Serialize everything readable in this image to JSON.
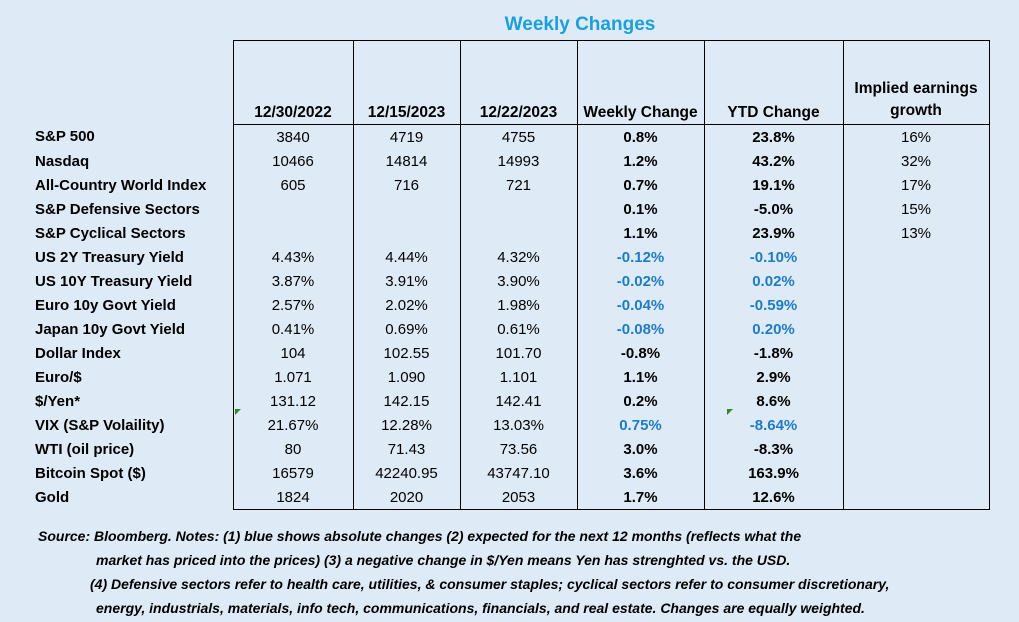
{
  "title": "Weekly Changes",
  "headers": [
    "12/30/2022",
    "12/15/2023",
    "12/22/2023",
    "Weekly Change",
    "YTD Change",
    "Implied earnings growth"
  ],
  "rows": [
    {
      "label": "S&P 500",
      "v1": "3840",
      "v2": "4719",
      "v3": "4755",
      "weekly": "0.8%",
      "ytd": "23.8%",
      "earnings": "16%",
      "blue": false
    },
    {
      "label": "Nasdaq",
      "v1": "10466",
      "v2": "14814",
      "v3": "14993",
      "weekly": "1.2%",
      "ytd": "43.2%",
      "earnings": "32%",
      "blue": false
    },
    {
      "label": "All-Country World Index",
      "v1": "605",
      "v2": "716",
      "v3": "721",
      "weekly": "0.7%",
      "ytd": "19.1%",
      "earnings": "17%",
      "blue": false
    },
    {
      "label": "S&P Defensive Sectors",
      "v1": "",
      "v2": "",
      "v3": "",
      "weekly": "0.1%",
      "ytd": "-5.0%",
      "earnings": "15%",
      "blue": false
    },
    {
      "label": "S&P Cyclical Sectors",
      "v1": "",
      "v2": "",
      "v3": "",
      "weekly": "1.1%",
      "ytd": "23.9%",
      "earnings": "13%",
      "blue": false
    },
    {
      "label": "US 2Y Treasury Yield",
      "v1": "4.43%",
      "v2": "4.44%",
      "v3": "4.32%",
      "weekly": "-0.12%",
      "ytd": "-0.10%",
      "earnings": "",
      "blue": true
    },
    {
      "label": "US 10Y Treasury Yield",
      "v1": "3.87%",
      "v2": "3.91%",
      "v3": "3.90%",
      "weekly": "-0.02%",
      "ytd": "0.02%",
      "earnings": "",
      "blue": true
    },
    {
      "label": "Euro 10y Govt Yield",
      "v1": "2.57%",
      "v2": "2.02%",
      "v3": "1.98%",
      "weekly": "-0.04%",
      "ytd": "-0.59%",
      "earnings": "",
      "blue": true
    },
    {
      "label": "Japan 10y Govt Yield",
      "v1": "0.41%",
      "v2": "0.69%",
      "v3": "0.61%",
      "weekly": "-0.08%",
      "ytd": "0.20%",
      "earnings": "",
      "blue": true
    },
    {
      "label": "Dollar Index",
      "v1": "104",
      "v2": "102.55",
      "v3": "101.70",
      "weekly": "-0.8%",
      "ytd": "-1.8%",
      "earnings": "",
      "blue": false
    },
    {
      "label": "Euro/$",
      "v1": "1.071",
      "v2": "1.090",
      "v3": "1.101",
      "weekly": "1.1%",
      "ytd": "2.9%",
      "earnings": "",
      "blue": false
    },
    {
      "label": "$/Yen*",
      "v1": "131.12",
      "v2": "142.15",
      "v3": "142.41",
      "weekly": "0.2%",
      "ytd": "8.6%",
      "earnings": "",
      "blue": false
    },
    {
      "label": "VIX (S&P Volaility)",
      "v1": "21.67%",
      "v2": "12.28%",
      "v3": "13.03%",
      "weekly": "0.75%",
      "ytd": "-8.64%",
      "earnings": "",
      "blue": true
    },
    {
      "label": "WTI (oil price)",
      "v1": "80",
      "v2": "71.43",
      "v3": "73.56",
      "weekly": "3.0%",
      "ytd": "-8.3%",
      "earnings": "",
      "blue": false
    },
    {
      "label": "Bitcoin Spot ($)",
      "v1": "16579",
      "v2": "42240.95",
      "v3": "43747.10",
      "weekly": "3.6%",
      "ytd": "163.9%",
      "earnings": "",
      "blue": false
    },
    {
      "label": "Gold",
      "v1": "1824",
      "v2": "2020",
      "v3": "2053",
      "weekly": "1.7%",
      "ytd": "12.6%",
      "earnings": "",
      "blue": false
    }
  ],
  "notes": {
    "line1": "Source: Bloomberg. Notes: (1) blue shows absolute changes (2) expected for the next 12 months (reflects what the",
    "line2": "market has priced into the prices) (3) a negative change in $/Yen means Yen has strenghted vs. the USD.",
    "line3": "(4) Defensive sectors refer to health care, utilities, & consumer staples; cyclical sectors refer to consumer discretionary,",
    "line4": "energy, industrials, materials, info tech, communications, financials, and real estate. Changes are equally weighted."
  },
  "colors": {
    "background": "#DEEBF7",
    "title": "#1BA0DA",
    "blue_values": "#1E7CC2",
    "marker": "#2E8B2E"
  }
}
